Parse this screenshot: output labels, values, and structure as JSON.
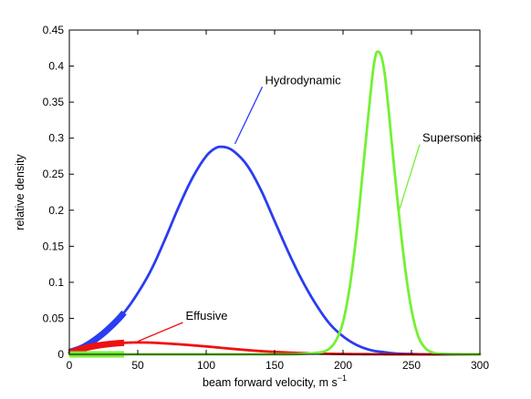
{
  "chart_data": {
    "type": "line",
    "title": "",
    "xlabel": "beam forward velocity, m s",
    "xlabel_superscript": "−1",
    "ylabel": "relative density",
    "xlim": [
      0,
      300
    ],
    "ylim": [
      0,
      0.45
    ],
    "x_ticks": [
      0,
      50,
      100,
      150,
      200,
      250,
      300
    ],
    "y_ticks": [
      0,
      0.05,
      0.1,
      0.15,
      0.2,
      0.25,
      0.3,
      0.35,
      0.4,
      0.45
    ],
    "x_tick_labels": [
      "0",
      "50",
      "100",
      "150",
      "200",
      "250",
      "300"
    ],
    "y_tick_labels": [
      "0",
      "0.05",
      "0.1",
      "0.15",
      "0.2",
      "0.25",
      "0.3",
      "0.35",
      "0.4",
      "0.45"
    ],
    "grid": false,
    "series": [
      {
        "name": "Hydrodynamic",
        "color": "#2b3cf2",
        "x": [
          0,
          10,
          20,
          30,
          40,
          50,
          60,
          70,
          80,
          90,
          100,
          105,
          110,
          115,
          120,
          130,
          140,
          150,
          160,
          170,
          180,
          190,
          200,
          210,
          220,
          230,
          240,
          250,
          260,
          270,
          300
        ],
        "y": [
          0.003,
          0.01,
          0.022,
          0.038,
          0.058,
          0.085,
          0.118,
          0.16,
          0.205,
          0.245,
          0.275,
          0.284,
          0.288,
          0.287,
          0.282,
          0.262,
          0.228,
          0.185,
          0.142,
          0.103,
          0.07,
          0.043,
          0.025,
          0.013,
          0.006,
          0.003,
          0.001,
          0.0005,
          0,
          0,
          0
        ],
        "thick_segment_x": [
          0,
          40
        ]
      },
      {
        "name": "Effusive",
        "color": "#f01010",
        "x": [
          0,
          10,
          20,
          30,
          40,
          50,
          60,
          70,
          80,
          100,
          120,
          140,
          160,
          180,
          200,
          220,
          250,
          300
        ],
        "y": [
          0.002,
          0.008,
          0.012,
          0.0145,
          0.016,
          0.0165,
          0.0162,
          0.0152,
          0.014,
          0.011,
          0.0075,
          0.0045,
          0.0025,
          0.0012,
          0.0005,
          0.0002,
          0,
          0
        ],
        "thick_segment_x": [
          0,
          40
        ]
      },
      {
        "name": "Supersonic",
        "color": "#74f034",
        "x": [
          0,
          40,
          100,
          150,
          180,
          190,
          195,
          200,
          205,
          210,
          215,
          220,
          222,
          225,
          227,
          230,
          233,
          235,
          240,
          245,
          250,
          255,
          260,
          265,
          270,
          300
        ],
        "y": [
          0,
          0,
          0,
          0,
          0.002,
          0.008,
          0.02,
          0.045,
          0.095,
          0.17,
          0.265,
          0.36,
          0.395,
          0.42,
          0.418,
          0.395,
          0.345,
          0.305,
          0.21,
          0.125,
          0.062,
          0.025,
          0.009,
          0.003,
          0.001,
          0
        ],
        "thick_segment_x": [
          0,
          40
        ]
      }
    ],
    "annotations": [
      {
        "text": "Hydrodynamic",
        "series": "Hydrodynamic",
        "label_at": [
          143,
          0.375
        ],
        "arrow_to": [
          121,
          0.292
        ]
      },
      {
        "text": "Supersonic",
        "series": "Supersonic",
        "label_at": [
          258,
          0.295
        ],
        "arrow_to": [
          241,
          0.2
        ]
      },
      {
        "text": "Effusive",
        "series": "Effusive",
        "label_at": [
          85,
          0.048
        ],
        "arrow_to": [
          50,
          0.018
        ]
      }
    ]
  }
}
